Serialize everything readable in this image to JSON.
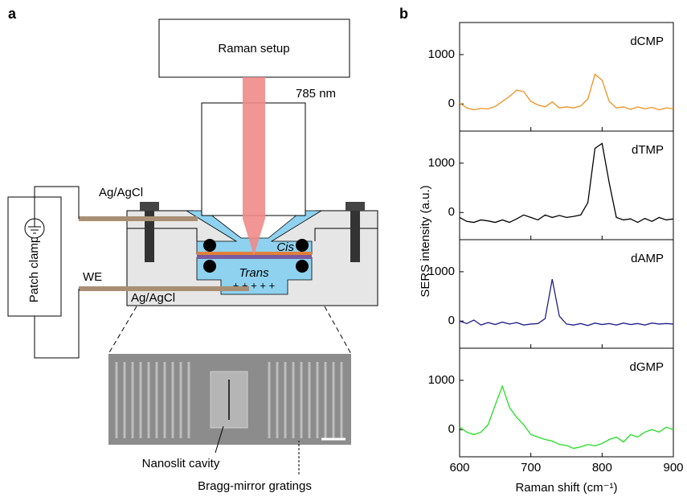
{
  "panel_labels": [
    "a",
    "b"
  ],
  "diagram": {
    "raman_setup": "Raman setup",
    "wavelength": "785 nm",
    "electrode_top": "Ag/AgCl",
    "electrode_bottom": "Ag/AgCl",
    "working_electrode": "WE",
    "patch_clamp": "Patch clamp",
    "cis": "Cis",
    "trans": "Trans",
    "charges": "+ + + + +",
    "nanoslit": "Nanoslit cavity",
    "gratings": "Bragg-mirror gratings"
  },
  "figure_b": {
    "ylabel": "SERS intensity (a.u.)",
    "xlabel": "Raman shift (cm⁻¹)"
  },
  "chart_data": [
    {
      "type": "line",
      "title": "dCMP",
      "x": [
        600,
        610,
        620,
        630,
        640,
        650,
        660,
        670,
        680,
        690,
        700,
        710,
        720,
        730,
        740,
        750,
        760,
        770,
        780,
        790,
        800,
        810,
        820,
        830,
        840,
        850,
        860,
        870,
        880,
        890,
        900
      ],
      "series": [
        {
          "color": "#f0901e",
          "values": [
            20,
            -80,
            -120,
            -90,
            -100,
            -50,
            50,
            150,
            280,
            250,
            50,
            -20,
            -60,
            40,
            -80,
            -60,
            -80,
            -40,
            100,
            600,
            480,
            50,
            -80,
            -60,
            -110,
            -60,
            -100,
            -70,
            -120,
            -80,
            -100
          ]
        }
      ],
      "xlim": [
        600,
        900
      ],
      "ylim": [
        -550,
        1650
      ],
      "xticks": [
        600,
        700,
        800,
        900
      ],
      "yticks": [
        0,
        1000
      ]
    },
    {
      "type": "line",
      "title": "dTMP",
      "x": [
        600,
        610,
        620,
        630,
        640,
        650,
        660,
        670,
        680,
        690,
        700,
        710,
        720,
        730,
        740,
        750,
        760,
        770,
        780,
        790,
        800,
        810,
        820,
        830,
        840,
        850,
        860,
        870,
        880,
        890,
        900
      ],
      "series": [
        {
          "color": "#000000",
          "values": [
            -100,
            -180,
            -200,
            -150,
            -170,
            -200,
            -150,
            -200,
            -130,
            -50,
            -100,
            -150,
            -50,
            -100,
            -60,
            -100,
            -80,
            -50,
            200,
            1300,
            1400,
            600,
            -100,
            -150,
            -130,
            -200,
            -120,
            -180,
            -100,
            -150,
            -130
          ]
        }
      ],
      "xlim": [
        600,
        900
      ],
      "ylim": [
        -550,
        1650
      ],
      "xticks": [
        600,
        700,
        800,
        900
      ],
      "yticks": [
        0,
        1000
      ]
    },
    {
      "type": "line",
      "title": "dAMP",
      "x": [
        600,
        610,
        620,
        630,
        640,
        650,
        660,
        670,
        680,
        690,
        700,
        710,
        720,
        730,
        740,
        750,
        760,
        770,
        780,
        790,
        800,
        810,
        820,
        830,
        840,
        850,
        860,
        870,
        880,
        890,
        900
      ],
      "series": [
        {
          "color": "#1f1f8a",
          "values": [
            0,
            -50,
            20,
            -80,
            -30,
            -70,
            -20,
            -60,
            -30,
            -80,
            -60,
            -50,
            50,
            850,
            100,
            -60,
            -80,
            -50,
            -90,
            -40,
            -70,
            -50,
            -80,
            -40,
            -70,
            -50,
            -80,
            -40,
            -60,
            -50,
            -60
          ]
        }
      ],
      "xlim": [
        600,
        900
      ],
      "ylim": [
        -550,
        1650
      ],
      "xticks": [
        600,
        700,
        800,
        900
      ],
      "yticks": [
        0,
        1000
      ]
    },
    {
      "type": "line",
      "title": "dGMP",
      "x": [
        600,
        610,
        620,
        630,
        640,
        650,
        660,
        670,
        680,
        690,
        700,
        710,
        720,
        730,
        740,
        750,
        760,
        770,
        780,
        790,
        800,
        810,
        820,
        830,
        840,
        850,
        860,
        870,
        880,
        890,
        900
      ],
      "series": [
        {
          "color": "#22dd22",
          "values": [
            50,
            -50,
            -100,
            -50,
            100,
            500,
            880,
            450,
            250,
            100,
            -100,
            -150,
            -200,
            -230,
            -300,
            -320,
            -380,
            -350,
            -300,
            -330,
            -280,
            -200,
            -150,
            -250,
            -100,
            -150,
            -50,
            0,
            -50,
            50,
            0
          ]
        }
      ],
      "xlim": [
        600,
        900
      ],
      "ylim": [
        -550,
        1650
      ],
      "xticks": [
        600,
        700,
        800,
        900
      ],
      "yticks": [
        0,
        1000
      ]
    }
  ]
}
